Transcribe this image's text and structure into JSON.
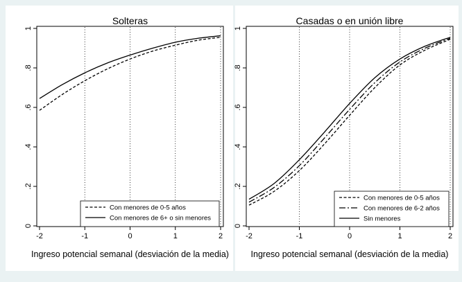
{
  "chart_data": [
    {
      "type": "line",
      "title": "Solteras",
      "xlabel": "Ingreso potencial semanal (desviación de la media)",
      "ylabel": "",
      "xlim": [
        -2,
        2
      ],
      "ylim": [
        0,
        1
      ],
      "x_ticks": [
        "-2",
        "-1",
        "0",
        "1",
        "2"
      ],
      "y_ticks": [
        "0",
        ".2",
        ".4",
        ".6",
        ".8",
        "1"
      ],
      "grid": "vertical dotted",
      "legend_position": "bottom-right",
      "x": [
        -2,
        -1.5,
        -1,
        -0.5,
        0,
        0.5,
        1,
        1.5,
        2
      ],
      "series": [
        {
          "name": "Con menores de 0-5 años",
          "style": "dashed",
          "values": [
            0.585,
            0.665,
            0.735,
            0.795,
            0.845,
            0.885,
            0.915,
            0.94,
            0.955
          ]
        },
        {
          "name": "Con menores de 6+ o sin menores",
          "style": "solid",
          "values": [
            0.645,
            0.715,
            0.775,
            0.825,
            0.865,
            0.9,
            0.93,
            0.95,
            0.963
          ]
        }
      ]
    },
    {
      "type": "line",
      "title": "Casadas o en unión libre",
      "xlabel": "Ingreso potencial semanal (desviación de la media)",
      "ylabel": "",
      "xlim": [
        -2,
        2
      ],
      "ylim": [
        0,
        1
      ],
      "x_ticks": [
        "-2",
        "-1",
        "0",
        "1",
        "2"
      ],
      "y_ticks": [
        "0",
        ".2",
        ".4",
        ".6",
        ".8",
        "1"
      ],
      "grid": "vertical dotted",
      "legend_position": "bottom-right",
      "x": [
        -2,
        -1.5,
        -1,
        -0.5,
        0,
        0.5,
        1,
        1.5,
        2
      ],
      "series": [
        {
          "name": "Con menores de 0-5 años",
          "style": "dashed",
          "values": [
            0.105,
            0.175,
            0.28,
            0.415,
            0.56,
            0.7,
            0.815,
            0.89,
            0.945
          ]
        },
        {
          "name": "Con menores de 6-2 años",
          "style": "longdash-dot",
          "values": [
            0.12,
            0.195,
            0.305,
            0.445,
            0.59,
            0.725,
            0.83,
            0.9,
            0.95
          ]
        },
        {
          "name": "Sin menores",
          "style": "solid",
          "values": [
            0.135,
            0.215,
            0.335,
            0.475,
            0.62,
            0.75,
            0.845,
            0.91,
            0.955
          ]
        }
      ]
    }
  ]
}
